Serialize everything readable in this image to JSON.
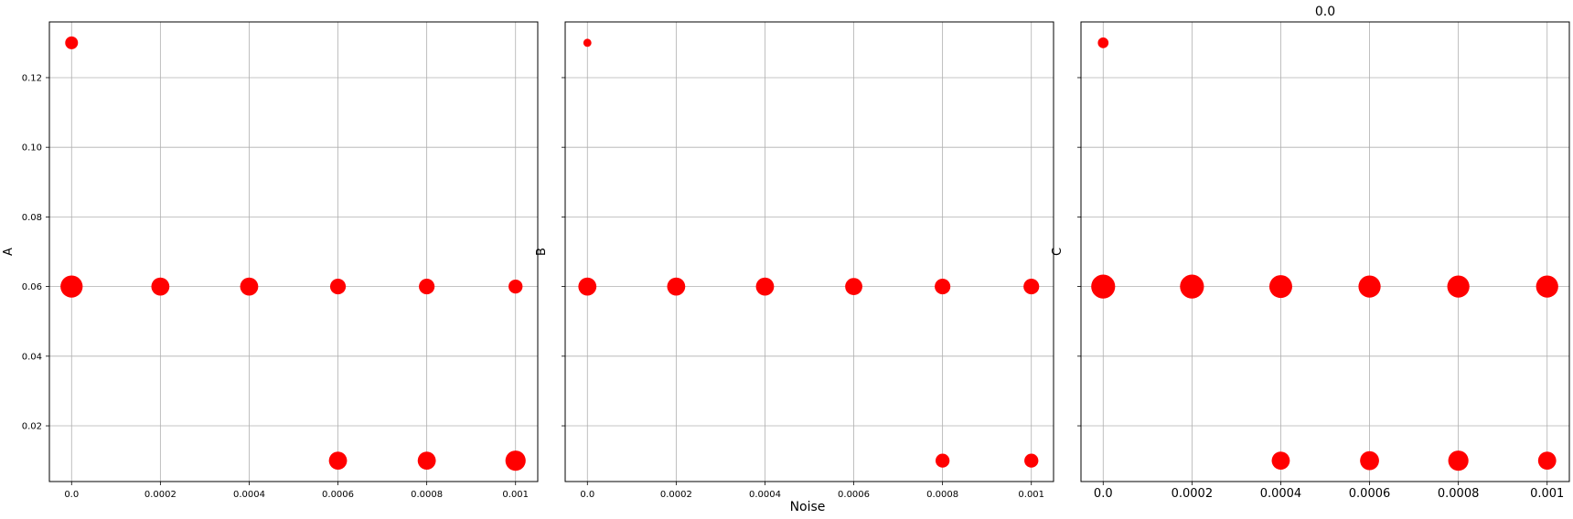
{
  "figure": {
    "x_axis_label": "Noise",
    "colors": {
      "marker": "#ff0000",
      "grid": "#b0b0b0",
      "frame": "#000000"
    }
  },
  "chart_data": [
    {
      "type": "scatter",
      "panel": "A",
      "title": "",
      "ylabel": "A",
      "xlabel": "",
      "x_ticks": [
        0.0,
        0.0002,
        0.0004,
        0.0006,
        0.0008,
        0.001
      ],
      "x_tick_labels": [
        "0.0",
        "0.0002",
        "0.0004",
        "0.0006",
        "0.0008",
        "0.001"
      ],
      "y_ticks": [
        0.02,
        0.04,
        0.06,
        0.08,
        0.1,
        0.12
      ],
      "y_tick_labels": [
        "0.02",
        "0.04",
        "0.06",
        "0.08",
        "0.10",
        "0.12"
      ],
      "show_y_tick_labels": true,
      "xlim": [
        -5e-05,
        0.00105
      ],
      "ylim": [
        0.004,
        0.136
      ],
      "grid": true,
      "points": [
        {
          "x": 0.0,
          "y": 0.13,
          "size": 1
        },
        {
          "x": 0.0,
          "y": 0.06,
          "size": 3
        },
        {
          "x": 0.0002,
          "y": 0.06,
          "size": 2
        },
        {
          "x": 0.0004,
          "y": 0.06,
          "size": 2
        },
        {
          "x": 0.0006,
          "y": 0.06,
          "size": 1.5
        },
        {
          "x": 0.0008,
          "y": 0.06,
          "size": 1.5
        },
        {
          "x": 0.001,
          "y": 0.06,
          "size": 1.2
        },
        {
          "x": 0.0006,
          "y": 0.01,
          "size": 2
        },
        {
          "x": 0.0008,
          "y": 0.01,
          "size": 2
        },
        {
          "x": 0.001,
          "y": 0.01,
          "size": 2.5
        }
      ]
    },
    {
      "type": "scatter",
      "panel": "B",
      "title": "",
      "ylabel": "B",
      "xlabel": "Noise",
      "x_ticks": [
        0.0,
        0.0002,
        0.0004,
        0.0006,
        0.0008,
        0.001
      ],
      "x_tick_labels": [
        "0.0",
        "0.0002",
        "0.0004",
        "0.0006",
        "0.0008",
        "0.001"
      ],
      "y_ticks": [
        0.02,
        0.04,
        0.06,
        0.08,
        0.1,
        0.12
      ],
      "y_tick_labels": [],
      "show_y_tick_labels": false,
      "xlim": [
        -5e-05,
        0.00105
      ],
      "ylim": [
        0.004,
        0.136
      ],
      "grid": true,
      "points": [
        {
          "x": 0.0,
          "y": 0.13,
          "size": 0.4
        },
        {
          "x": 0.0,
          "y": 0.06,
          "size": 2
        },
        {
          "x": 0.0002,
          "y": 0.06,
          "size": 2
        },
        {
          "x": 0.0004,
          "y": 0.06,
          "size": 2
        },
        {
          "x": 0.0006,
          "y": 0.06,
          "size": 1.8
        },
        {
          "x": 0.0008,
          "y": 0.06,
          "size": 1.5
        },
        {
          "x": 0.001,
          "y": 0.06,
          "size": 1.5
        },
        {
          "x": 0.0008,
          "y": 0.01,
          "size": 1.2
        },
        {
          "x": 0.001,
          "y": 0.01,
          "size": 1.2
        }
      ]
    },
    {
      "type": "scatter",
      "panel": "C",
      "title": "0.0",
      "ylabel": "C",
      "xlabel": "",
      "x_ticks": [
        0.0,
        0.0002,
        0.0004,
        0.0006,
        0.0008,
        0.001
      ],
      "x_tick_labels": [
        "0.0",
        "0.0002",
        "0.0004",
        "0.0006",
        "0.0008",
        "0.001"
      ],
      "y_ticks": [
        0.02,
        0.04,
        0.06,
        0.08,
        0.1,
        0.12
      ],
      "y_tick_labels": [],
      "show_y_tick_labels": false,
      "xlim": [
        -5e-05,
        0.00105
      ],
      "ylim": [
        0.004,
        0.136
      ],
      "grid": true,
      "points": [
        {
          "x": 0.0,
          "y": 0.13,
          "size": 0.7
        },
        {
          "x": 0.0,
          "y": 0.06,
          "size": 3.5
        },
        {
          "x": 0.0002,
          "y": 0.06,
          "size": 3.5
        },
        {
          "x": 0.0004,
          "y": 0.06,
          "size": 3.2
        },
        {
          "x": 0.0006,
          "y": 0.06,
          "size": 3
        },
        {
          "x": 0.0008,
          "y": 0.06,
          "size": 3
        },
        {
          "x": 0.001,
          "y": 0.06,
          "size": 3
        },
        {
          "x": 0.0004,
          "y": 0.01,
          "size": 2
        },
        {
          "x": 0.0006,
          "y": 0.01,
          "size": 2.2
        },
        {
          "x": 0.0008,
          "y": 0.01,
          "size": 2.5
        },
        {
          "x": 0.001,
          "y": 0.01,
          "size": 2
        }
      ]
    }
  ]
}
